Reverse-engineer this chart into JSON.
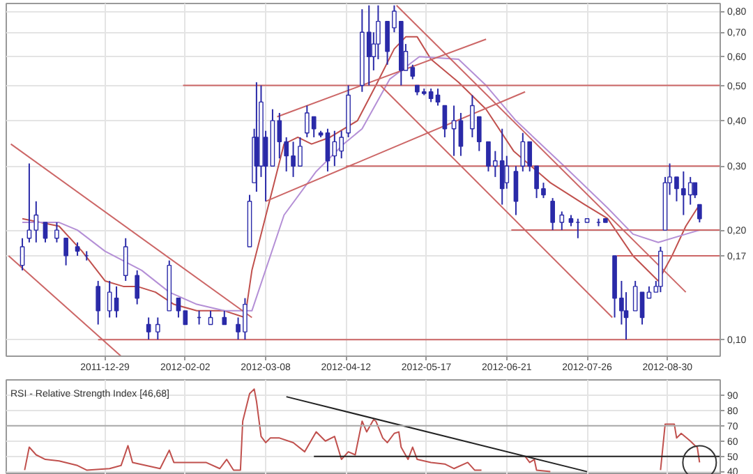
{
  "chart_data": [
    {
      "type": "candlestick",
      "log": true,
      "grid": true,
      "color": "#2a2aa8",
      "x": [
        "2011-11-23",
        "2011-11-26",
        "2011-11-29",
        "2011-12-03",
        "2011-12-08",
        "2011-12-12",
        "2011-12-17",
        "2011-12-21",
        "2011-12-26",
        "2011-12-31",
        "2012-01-03",
        "2012-01-07",
        "2012-01-12",
        "2012-01-17",
        "2012-01-21",
        "2012-01-26",
        "2012-01-30",
        "2012-02-02",
        "2012-02-08",
        "2012-02-13",
        "2012-02-19",
        "2012-02-25",
        "2012-02-28",
        "2012-03-01",
        "2012-03-03",
        "2012-03-04",
        "2012-03-06",
        "2012-03-08",
        "2012-03-11",
        "2012-03-14",
        "2012-03-17",
        "2012-03-20",
        "2012-03-23",
        "2012-03-26",
        "2012-03-29",
        "2012-04-01",
        "2012-04-04",
        "2012-04-07",
        "2012-04-10",
        "2012-04-13",
        "2012-04-19",
        "2012-04-22",
        "2012-04-24",
        "2012-04-26",
        "2012-04-30",
        "2012-05-03",
        "2012-05-06",
        "2012-05-08",
        "2012-05-11",
        "2012-05-13",
        "2012-05-16",
        "2012-05-19",
        "2012-05-22",
        "2012-05-25",
        "2012-05-29",
        "2012-06-01",
        "2012-06-06",
        "2012-06-09",
        "2012-06-13",
        "2012-06-16",
        "2012-06-19",
        "2012-06-21",
        "2012-06-25",
        "2012-06-28",
        "2012-07-01",
        "2012-07-04",
        "2012-07-07",
        "2012-07-11",
        "2012-07-15",
        "2012-07-19",
        "2012-07-22",
        "2012-07-26",
        "2012-07-31",
        "2012-08-03",
        "2012-08-07",
        "2012-08-10",
        "2012-08-12",
        "2012-08-16",
        "2012-08-19",
        "2012-08-22",
        "2012-08-25",
        "2012-08-27",
        "2012-08-29",
        "2012-08-31",
        "2012-09-03",
        "2012-09-06",
        "2012-09-09",
        "2012-09-11",
        "2012-09-13"
      ],
      "ohlc": [
        [
          0.16,
          0.19,
          0.155,
          0.18
        ],
        [
          0.19,
          0.305,
          0.185,
          0.2
        ],
        [
          0.2,
          0.24,
          0.185,
          0.22
        ],
        [
          0.21,
          0.21,
          0.185,
          0.19
        ],
        [
          0.19,
          0.21,
          0.185,
          0.2
        ],
        [
          0.19,
          0.19,
          0.16,
          0.17
        ],
        [
          0.18,
          0.185,
          0.17,
          0.175
        ],
        [
          0.17,
          0.175,
          0.165,
          0.17
        ],
        [
          0.14,
          0.145,
          0.11,
          0.12
        ],
        [
          0.12,
          0.145,
          0.115,
          0.135
        ],
        [
          0.13,
          0.14,
          0.115,
          0.12
        ],
        [
          0.15,
          0.19,
          0.145,
          0.18
        ],
        [
          0.15,
          0.155,
          0.125,
          0.13
        ],
        [
          0.11,
          0.115,
          0.1,
          0.105
        ],
        [
          0.105,
          0.115,
          0.1,
          0.11
        ],
        [
          0.12,
          0.165,
          0.12,
          0.16
        ],
        [
          0.13,
          0.13,
          0.115,
          0.12
        ],
        [
          0.12,
          0.12,
          0.11,
          0.11
        ],
        [
          0.115,
          0.12,
          0.11,
          0.115
        ],
        [
          0.11,
          0.12,
          0.11,
          0.115
        ],
        [
          0.115,
          0.12,
          0.11,
          0.11
        ],
        [
          0.11,
          0.115,
          0.1,
          0.105
        ],
        [
          0.105,
          0.13,
          0.1,
          0.125
        ],
        [
          0.18,
          0.25,
          0.18,
          0.24
        ],
        [
          0.27,
          0.38,
          0.27,
          0.36
        ],
        [
          0.36,
          0.51,
          0.255,
          0.3
        ],
        [
          0.3,
          0.5,
          0.28,
          0.45
        ],
        [
          0.36,
          0.375,
          0.24,
          0.3
        ],
        [
          0.3,
          0.43,
          0.3,
          0.4
        ],
        [
          0.4,
          0.42,
          0.315,
          0.35
        ],
        [
          0.35,
          0.36,
          0.29,
          0.32
        ],
        [
          0.32,
          0.35,
          0.28,
          0.3
        ],
        [
          0.3,
          0.36,
          0.3,
          0.34
        ],
        [
          0.37,
          0.44,
          0.36,
          0.42
        ],
        [
          0.41,
          0.41,
          0.36,
          0.38
        ],
        [
          0.37,
          0.375,
          0.36,
          0.365
        ],
        [
          0.37,
          0.38,
          0.29,
          0.31
        ],
        [
          0.32,
          0.375,
          0.3,
          0.35
        ],
        [
          0.33,
          0.375,
          0.315,
          0.36
        ],
        [
          0.37,
          0.5,
          0.36,
          0.47
        ],
        [
          0.5,
          0.81,
          0.48,
          0.7
        ],
        [
          0.7,
          0.83,
          0.5,
          0.6
        ],
        [
          0.6,
          0.7,
          0.55,
          0.65
        ],
        [
          0.65,
          0.83,
          0.59,
          0.75
        ],
        [
          0.75,
          0.75,
          0.57,
          0.62
        ],
        [
          0.72,
          0.83,
          0.7,
          0.8
        ],
        [
          0.75,
          0.75,
          0.5,
          0.55
        ],
        [
          0.55,
          0.65,
          0.55,
          0.62
        ],
        [
          0.56,
          0.57,
          0.52,
          0.53
        ],
        [
          0.5,
          0.5,
          0.47,
          0.48
        ],
        [
          0.48,
          0.49,
          0.47,
          0.475
        ],
        [
          0.48,
          0.49,
          0.45,
          0.46
        ],
        [
          0.47,
          0.49,
          0.44,
          0.45
        ],
        [
          0.44,
          0.44,
          0.36,
          0.38
        ],
        [
          0.38,
          0.44,
          0.32,
          0.4
        ],
        [
          0.4,
          0.42,
          0.32,
          0.34
        ],
        [
          0.38,
          0.47,
          0.36,
          0.44
        ],
        [
          0.41,
          0.41,
          0.33,
          0.35
        ],
        [
          0.35,
          0.35,
          0.29,
          0.3
        ],
        [
          0.3,
          0.33,
          0.28,
          0.31
        ],
        [
          0.31,
          0.38,
          0.235,
          0.26
        ],
        [
          0.27,
          0.32,
          0.26,
          0.3
        ],
        [
          0.29,
          0.3,
          0.22,
          0.24
        ],
        [
          0.3,
          0.37,
          0.29,
          0.35
        ],
        [
          0.35,
          0.35,
          0.29,
          0.3
        ],
        [
          0.3,
          0.3,
          0.245,
          0.26
        ],
        [
          0.26,
          0.27,
          0.245,
          0.25
        ],
        [
          0.24,
          0.245,
          0.2,
          0.21
        ],
        [
          0.21,
          0.225,
          0.2,
          0.22
        ],
        [
          0.215,
          0.22,
          0.205,
          0.21
        ],
        [
          0.21,
          0.215,
          0.19,
          0.21
        ],
        [
          0.21,
          0.215,
          0.21,
          0.215
        ],
        [
          0.21,
          0.215,
          0.205,
          0.21
        ],
        [
          0.215,
          0.215,
          0.21,
          0.21
        ],
        [
          0.17,
          0.17,
          0.115,
          0.13
        ],
        [
          0.13,
          0.145,
          0.11,
          0.12
        ],
        [
          0.12,
          0.135,
          0.1,
          0.115
        ],
        [
          0.12,
          0.145,
          0.12,
          0.14
        ],
        [
          0.135,
          0.135,
          0.11,
          0.115
        ],
        [
          0.13,
          0.14,
          0.13,
          0.135
        ],
        [
          0.135,
          0.145,
          0.135,
          0.14
        ],
        [
          0.14,
          0.18,
          0.135,
          0.175
        ],
        [
          0.2,
          0.28,
          0.2,
          0.27
        ],
        [
          0.27,
          0.305,
          0.25,
          0.28
        ],
        [
          0.28,
          0.28,
          0.24,
          0.26
        ],
        [
          0.26,
          0.29,
          0.22,
          0.25
        ],
        [
          0.25,
          0.28,
          0.235,
          0.27
        ],
        [
          0.27,
          0.27,
          0.245,
          0.25
        ],
        [
          0.235,
          0.235,
          0.21,
          0.215
        ]
      ],
      "series": [
        {
          "type": "line",
          "color": "#c0504d",
          "x": [
            "2011-11-23",
            "2011-12-09",
            "2011-12-19",
            "2011-12-29",
            "2012-01-06",
            "2012-01-12",
            "2012-01-20",
            "2012-01-28",
            "2012-02-07",
            "2012-02-19",
            "2012-02-28",
            "2012-03-02",
            "2012-03-16",
            "2012-03-22",
            "2012-03-28",
            "2012-04-05",
            "2012-04-17",
            "2012-04-25",
            "2012-05-03",
            "2012-05-08",
            "2012-05-13",
            "2012-05-19",
            "2012-05-31",
            "2012-06-12",
            "2012-06-24",
            "2012-07-10",
            "2012-07-25",
            "2012-08-04",
            "2012-08-15",
            "2012-08-26",
            "2012-09-01",
            "2012-09-07",
            "2012-09-13"
          ],
          "values": [
            0.215,
            0.205,
            0.175,
            0.145,
            0.14,
            0.14,
            0.135,
            0.125,
            0.12,
            0.12,
            0.115,
            0.155,
            0.345,
            0.36,
            0.345,
            0.36,
            0.4,
            0.5,
            0.63,
            0.68,
            0.68,
            0.59,
            0.51,
            0.43,
            0.33,
            0.27,
            0.235,
            0.215,
            0.17,
            0.145,
            0.17,
            0.205,
            0.235
          ]
        },
        {
          "type": "line",
          "color": "#b48fd6",
          "x": [
            "2011-11-23",
            "2011-12-09",
            "2011-12-17",
            "2011-12-29",
            "2012-01-14",
            "2012-01-26",
            "2012-02-07",
            "2012-02-19",
            "2012-02-28",
            "2012-03-02",
            "2012-03-16",
            "2012-03-30",
            "2012-04-11",
            "2012-04-19",
            "2012-05-01",
            "2012-05-14",
            "2012-05-31",
            "2012-06-12",
            "2012-06-25",
            "2012-07-16",
            "2012-08-04",
            "2012-08-15",
            "2012-08-26",
            "2012-09-07",
            "2012-09-13"
          ],
          "values": [
            0.21,
            0.21,
            0.2,
            0.175,
            0.155,
            0.135,
            0.125,
            0.12,
            0.12,
            0.12,
            0.22,
            0.29,
            0.345,
            0.38,
            0.52,
            0.6,
            0.59,
            0.5,
            0.4,
            0.3,
            0.23,
            0.195,
            0.185,
            0.195,
            0.2
          ]
        },
        {
          "type": "line",
          "color": "#cc6666",
          "x": [
            "2011-11-18",
            "2012-03-02"
          ],
          "values": [
            0.345,
            0.115
          ]
        },
        {
          "type": "line",
          "color": "#cc6666",
          "x": [
            "2011-11-17",
            "2012-01-05"
          ],
          "values": [
            0.17,
            0.09
          ]
        },
        {
          "type": "line",
          "color": "#cc6666",
          "x": [
            "2011-12-26",
            "2012-09-22"
          ],
          "values": [
            0.1,
            0.1
          ]
        },
        {
          "type": "line",
          "color": "#cc6666",
          "x": [
            "2012-02-01",
            "2012-09-22"
          ],
          "values": [
            0.5,
            0.5
          ]
        },
        {
          "type": "line",
          "color": "#cc6666",
          "x": [
            "2012-04-12",
            "2012-09-22"
          ],
          "values": [
            0.3,
            0.3
          ]
        },
        {
          "type": "line",
          "color": "#cc6666",
          "x": [
            "2012-06-23",
            "2012-09-22"
          ],
          "values": [
            0.2,
            0.2
          ]
        },
        {
          "type": "line",
          "color": "#cc6666",
          "x": [
            "2012-08-08",
            "2012-09-22"
          ],
          "values": [
            0.17,
            0.17
          ]
        },
        {
          "type": "line",
          "color": "#cc6666",
          "x": [
            "2012-03-13",
            "2012-06-12"
          ],
          "values": [
            0.41,
            0.67
          ]
        },
        {
          "type": "line",
          "color": "#cc6666",
          "x": [
            "2012-03-08",
            "2012-06-29"
          ],
          "values": [
            0.24,
            0.48
          ]
        },
        {
          "type": "line",
          "color": "#cc6666",
          "x": [
            "2012-05-04",
            "2012-09-07"
          ],
          "values": [
            0.83,
            0.135
          ]
        },
        {
          "type": "line",
          "color": "#cc6666",
          "x": [
            "2012-04-27",
            "2012-08-06"
          ],
          "values": [
            0.5,
            0.115
          ]
        }
      ],
      "xlim": [
        "2011-11-16",
        "2012-09-22"
      ],
      "xticks": [
        "2011-12-29",
        "2012-02-02",
        "2012-03-08",
        "2012-04-12",
        "2012-05-17",
        "2012-06-21",
        "2012-07-26",
        "2012-08-30"
      ],
      "ylim": [
        0.09,
        0.84
      ],
      "yticks": [
        {
          "value": 0.1,
          "label": "0,10"
        },
        {
          "value": 0.17,
          "label": "0,17"
        },
        {
          "value": 0.2,
          "label": "0,20"
        },
        {
          "value": 0.3,
          "label": "0,30"
        },
        {
          "value": 0.4,
          "label": "0,40"
        },
        {
          "value": 0.5,
          "label": "0,50"
        },
        {
          "value": 0.6,
          "label": "0,60"
        },
        {
          "value": 0.7,
          "label": "0,70"
        },
        {
          "value": 0.8,
          "label": "0,80"
        }
      ]
    },
    {
      "type": "line",
      "title": "RSI - Relative Strength Index [46,68]",
      "grid": true,
      "tick_labels": "y",
      "series": [
        {
          "color": "#c0504d",
          "x": [
            "2011-11-24",
            "2011-11-26",
            "2011-11-29",
            "2011-12-03",
            "2011-12-09",
            "2011-12-17",
            "2011-12-21",
            "2011-12-31",
            "2012-01-05",
            "2012-01-08",
            "2012-01-10",
            "2012-01-22",
            "2012-01-26",
            "2012-01-28",
            "2012-02-03",
            "2012-02-11",
            "2012-02-17",
            "2012-02-20",
            "2012-02-23",
            "2012-02-26",
            "2012-02-27",
            "2012-03-01",
            "2012-03-03",
            "2012-03-04",
            "2012-03-06",
            "2012-03-08",
            "2012-03-10",
            "2012-03-14",
            "2012-03-20",
            "2012-03-25",
            "2012-03-30",
            "2012-04-03",
            "2012-04-07",
            "2012-04-10",
            "2012-04-13",
            "2012-04-16",
            "2012-04-19",
            "2012-04-21",
            "2012-04-24",
            "2012-04-25",
            "2012-04-28",
            "2012-04-30",
            "2012-05-03",
            "2012-05-05",
            "2012-05-06",
            "2012-05-09",
            "2012-05-11",
            "2012-05-13",
            "2012-05-19",
            "2012-05-25",
            "2012-05-29",
            "2012-06-04",
            "2012-06-07",
            "2012-06-10",
            "2012-06-18",
            "2012-06-29",
            "2012-07-01",
            "2012-07-03",
            "2012-07-04",
            "2012-07-10",
            "2012-08-04",
            "2012-08-27",
            "2012-08-29",
            "2012-09-01",
            "2012-09-02",
            "2012-09-03",
            "2012-09-05",
            "2012-09-09",
            "2012-09-11",
            "2012-09-12",
            "2012-09-13"
          ],
          "values": [
            41,
            56,
            51,
            48,
            47,
            44,
            41,
            42,
            44,
            57,
            46,
            42,
            54,
            46,
            46,
            46,
            42,
            48,
            41,
            41,
            73,
            91,
            94,
            86,
            63,
            59,
            62,
            62,
            59,
            53,
            66,
            60,
            63,
            48,
            53,
            51,
            73,
            66,
            74,
            73,
            62,
            59,
            65,
            66,
            56,
            48,
            56,
            48,
            46,
            45,
            42,
            46,
            41,
            41,
            null,
            50,
            46,
            48,
            41,
            40,
            null,
            41,
            71,
            71,
            71,
            62,
            65,
            60,
            57,
            56,
            46
          ]
        },
        {
          "color": "#222222",
          "x": [
            "2012-03-29",
            "2012-09-22"
          ],
          "values": [
            50,
            50
          ]
        },
        {
          "color": "#222222",
          "x": [
            "2012-03-17",
            "2012-07-26"
          ],
          "values": [
            89,
            40
          ]
        }
      ],
      "ref_lines": [
        {
          "axis": "y",
          "value": 70,
          "color": "#aaaaaa"
        }
      ],
      "xlim": [
        "2011-11-16",
        "2012-09-22"
      ],
      "xticks": [
        "2011-12-29",
        "2012-02-02",
        "2012-03-08",
        "2012-04-12",
        "2012-05-17",
        "2012-06-21",
        "2012-07-26",
        "2012-08-30"
      ],
      "ylim": [
        38,
        100
      ],
      "yticks": [
        40,
        50,
        60,
        70,
        80,
        90
      ]
    }
  ]
}
